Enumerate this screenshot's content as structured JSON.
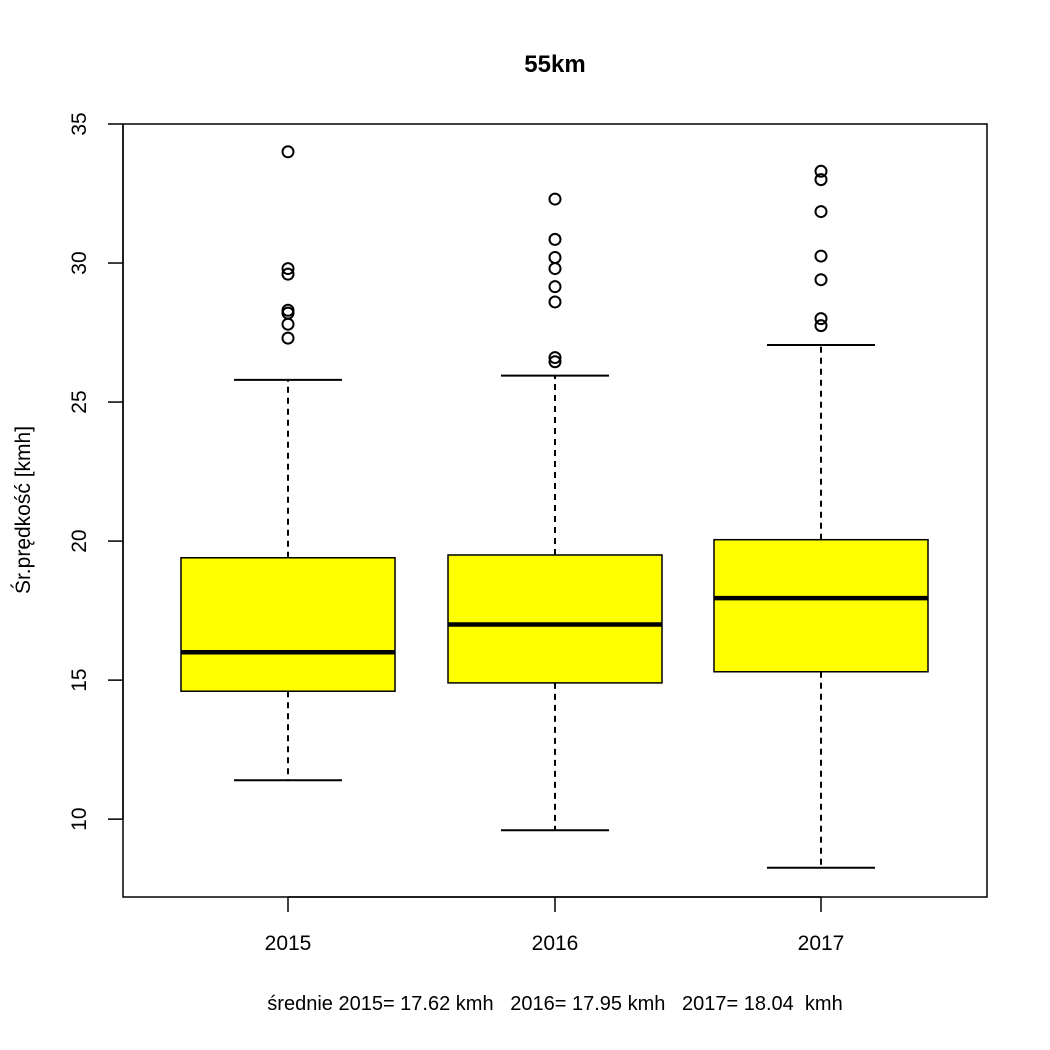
{
  "chart_data": {
    "type": "boxplot",
    "title": "55km",
    "xlabel": "",
    "ylabel": "Śr.prędkość [kmh]",
    "categories": [
      "2015",
      "2016",
      "2017"
    ],
    "ylim": [
      7.2,
      35
    ],
    "yticks": [
      10,
      15,
      20,
      25,
      30,
      35
    ],
    "grid": false,
    "colors": {
      "box_fill": "#ffff00",
      "stroke": "#000000"
    },
    "boxes": [
      {
        "category": "2015",
        "whisker_low": 11.4,
        "q1": 14.6,
        "median": 16.0,
        "q3": 19.4,
        "whisker_high": 25.8,
        "outliers": [
          34.0,
          29.8,
          29.6,
          28.3,
          28.2,
          27.8,
          27.3
        ]
      },
      {
        "category": "2016",
        "whisker_low": 9.6,
        "q1": 14.9,
        "median": 17.0,
        "q3": 19.5,
        "whisker_high": 25.95,
        "outliers": [
          32.3,
          30.85,
          30.2,
          29.8,
          29.15,
          28.6,
          26.6,
          26.45
        ]
      },
      {
        "category": "2017",
        "whisker_low": 8.25,
        "q1": 15.3,
        "median": 17.95,
        "q3": 20.05,
        "whisker_high": 27.05,
        "outliers": [
          33.3,
          33.0,
          31.85,
          30.25,
          29.4,
          28.0,
          27.75
        ]
      }
    ],
    "footnote": "średnie 2015= 17.62 kmh   2016= 17.95 kmh   2017= 18.04  kmh"
  }
}
